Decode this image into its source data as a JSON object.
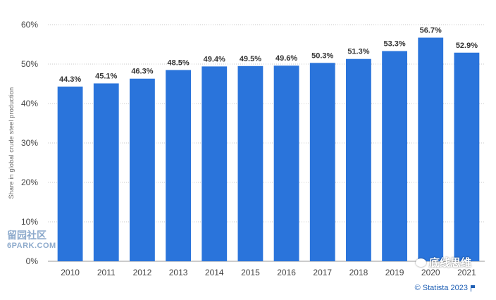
{
  "chart_data": {
    "type": "bar",
    "categories": [
      "2010",
      "2011",
      "2012",
      "2013",
      "2014",
      "2015",
      "2016",
      "2017",
      "2018",
      "2019",
      "2020",
      "2021"
    ],
    "values": [
      44.3,
      45.1,
      46.3,
      48.5,
      49.4,
      49.5,
      49.6,
      50.3,
      51.3,
      53.3,
      56.7,
      52.9
    ],
    "data_labels": [
      "44.3%",
      "45.1%",
      "46.3%",
      "48.5%",
      "49.4%",
      "49.5%",
      "49.6%",
      "50.3%",
      "51.3%",
      "53.3%",
      "56.7%",
      "52.9%"
    ],
    "ylabel": "Share in global crude steel production",
    "yticks": [
      "0%",
      "10%",
      "20%",
      "30%",
      "40%",
      "50%",
      "60%"
    ],
    "ylim": [
      0,
      60
    ],
    "grid": true,
    "bar_color": "#2a74db"
  },
  "credit": "© Statista 2023",
  "watermarks": {
    "left_top": "留园社区",
    "left_bottom": "6PARK.COM",
    "right": "底线思维"
  }
}
